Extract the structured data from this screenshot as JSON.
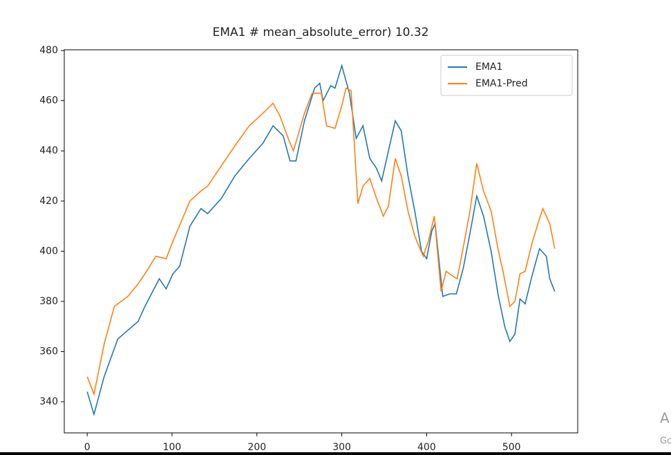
{
  "chart_data": {
    "type": "line",
    "title": "EMA1 # mean_absolute_error) 10.32",
    "xlim": [
      -27,
      578
    ],
    "xticks": [
      0,
      100,
      200,
      300,
      400,
      500
    ],
    "ylim": [
      327.6,
      480.3
    ],
    "yticks": [
      340,
      360,
      380,
      400,
      420,
      440,
      460,
      480
    ],
    "legend": "upper right",
    "series": [
      {
        "name": "EMA1",
        "color": "#1f77b4",
        "x": [
          0,
          8,
          20,
          36,
          60,
          68,
          85,
          93,
          101,
          109,
          121,
          134,
          142,
          158,
          174,
          191,
          207,
          219,
          231,
          239,
          246,
          256,
          268,
          274,
          278,
          287,
          292,
          300,
          309,
          317,
          325,
          333,
          341,
          347,
          355,
          363,
          370,
          378,
          386,
          394,
          400,
          406,
          410,
          419,
          427,
          435,
          443,
          451,
          459,
          467,
          476,
          484,
          492,
          498,
          504,
          510,
          516,
          524,
          533,
          541,
          545,
          551
        ],
        "values": [
          344,
          335,
          350,
          365,
          372,
          378,
          389,
          385,
          391,
          394,
          410,
          417,
          415,
          421,
          430,
          437,
          443,
          450,
          446,
          436,
          436,
          452,
          465,
          467,
          460,
          466,
          465,
          474,
          463,
          445,
          450,
          437,
          433,
          428,
          440,
          452,
          448,
          430,
          416,
          400,
          397,
          408,
          411,
          382,
          383,
          383,
          393,
          407,
          422,
          414,
          400,
          383,
          370,
          364,
          367,
          381,
          379,
          390,
          401,
          398,
          389,
          384
        ]
      },
      {
        "name": "EMA1-Pred",
        "color": "#ff7f0e",
        "x": [
          0,
          8,
          20,
          32,
          48,
          60,
          68,
          81,
          93,
          101,
          121,
          134,
          142,
          158,
          174,
          191,
          207,
          219,
          227,
          238,
          243,
          256,
          265,
          276,
          282,
          292,
          300,
          305,
          311,
          319,
          325,
          333,
          341,
          349,
          355,
          363,
          370,
          378,
          386,
          396,
          402,
          409,
          417,
          423,
          431,
          436,
          444,
          451,
          459,
          467,
          476,
          484,
          490,
          498,
          504,
          510,
          516,
          524,
          533,
          537,
          545,
          551
        ],
        "values": [
          350,
          343,
          363,
          378,
          382,
          387,
          391,
          398,
          397,
          404,
          420,
          424,
          426,
          434,
          442,
          450,
          455,
          459,
          454,
          444,
          440,
          455,
          463,
          463,
          450,
          449,
          458,
          465,
          464,
          419,
          426,
          429,
          421,
          414,
          418,
          437,
          430,
          416,
          406,
          398,
          404,
          414,
          384,
          392,
          390,
          389,
          403,
          416,
          435,
          424,
          416,
          401,
          392,
          378,
          380,
          391,
          392,
          403,
          413,
          417,
          411,
          401
        ]
      }
    ]
  },
  "watermark": {
    "title": "A",
    "subtitle": "Go"
  }
}
